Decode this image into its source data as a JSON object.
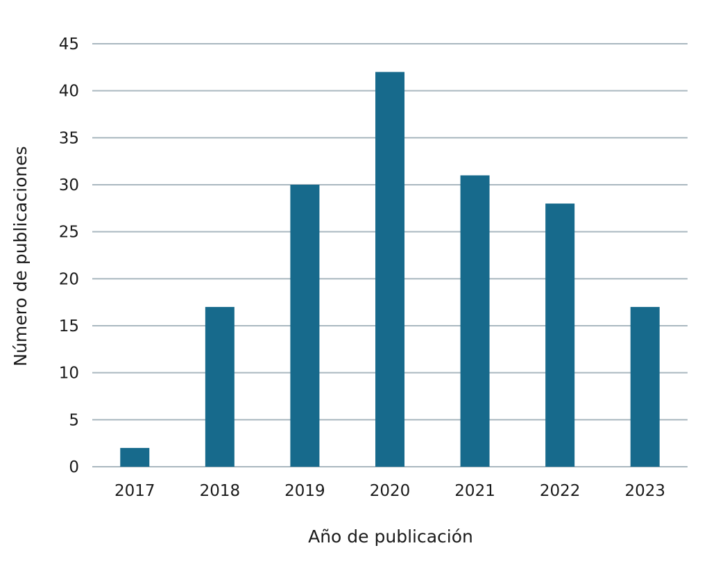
{
  "chart_data": {
    "type": "bar",
    "title": "",
    "xlabel": "Año de publicación",
    "ylabel": "Número de publicaciones",
    "categories": [
      "2017",
      "2018",
      "2019",
      "2020",
      "2021",
      "2022",
      "2023"
    ],
    "values": [
      2,
      17,
      30,
      42,
      31,
      28,
      17
    ],
    "ylim": [
      0,
      45
    ],
    "yticks": [
      0,
      5,
      10,
      15,
      20,
      25,
      30,
      35,
      40,
      45
    ],
    "grid": true,
    "legend": "none",
    "bar_color": "#176a8c",
    "grid_color": "#a9b7bf"
  }
}
